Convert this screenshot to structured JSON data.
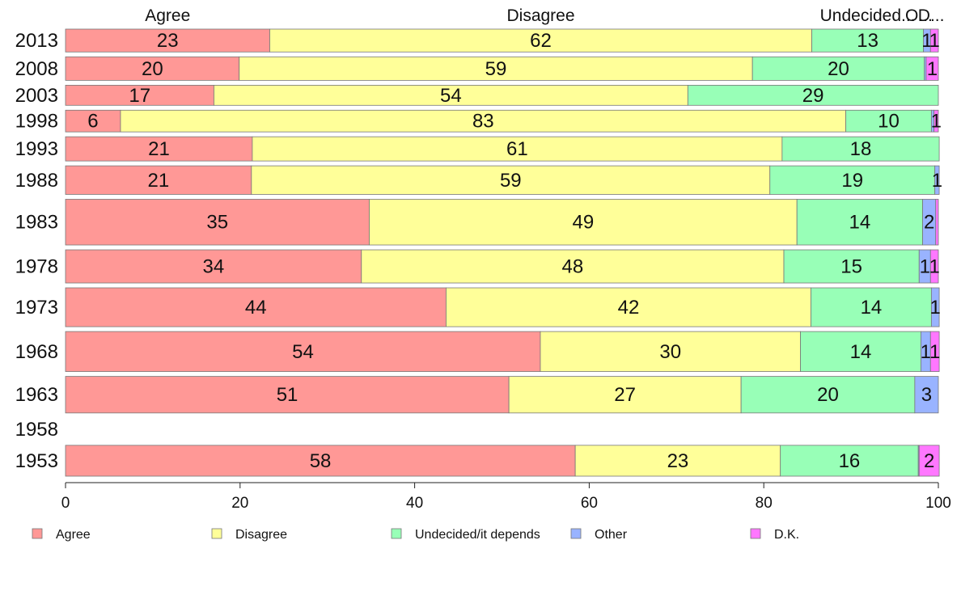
{
  "chart_data": {
    "type": "bar",
    "orientation": "horizontal",
    "stacked": true,
    "title": "",
    "xlabel": "",
    "ylabel": "",
    "xlim": [
      0,
      100
    ],
    "x_ticks": [
      0,
      20,
      40,
      60,
      80,
      100
    ],
    "top_labels": [
      "Agree",
      "Disagree",
      "Undecided...",
      "O...",
      "D..."
    ],
    "categories": [
      "2013",
      "2008",
      "2003",
      "1998",
      "1993",
      "1988",
      "1983",
      "1978",
      "1973",
      "1968",
      "1963",
      "1958",
      "1953"
    ],
    "series": [
      {
        "name": "Agree",
        "color": "#ff9896",
        "values": [
          23.4,
          19.9,
          17.0,
          6.3,
          21.4,
          21.3,
          34.8,
          33.9,
          43.6,
          54.4,
          50.8,
          null,
          58.4
        ]
      },
      {
        "name": "Disagree",
        "color": "#ffff99",
        "values": [
          62.1,
          58.8,
          54.3,
          83.1,
          60.7,
          59.4,
          49.0,
          48.4,
          41.8,
          29.8,
          26.6,
          null,
          23.5
        ]
      },
      {
        "name": "Undecided/it depends",
        "color": "#98ffb7",
        "values": [
          12.8,
          19.7,
          28.7,
          9.8,
          18.0,
          18.9,
          14.4,
          15.5,
          13.8,
          13.8,
          19.9,
          null,
          15.8
        ]
      },
      {
        "name": "Other",
        "color": "#99b3ff",
        "values": [
          0.8,
          0.2,
          0.0,
          0.3,
          0.0,
          0.5,
          1.5,
          1.3,
          0.9,
          1.1,
          2.7,
          null,
          0.1
        ]
      },
      {
        "name": "D.K.",
        "color": "#ff77ff",
        "values": [
          0.9,
          1.4,
          0.0,
          0.5,
          0.0,
          0.0,
          0.3,
          0.9,
          0.0,
          1.0,
          0.0,
          null,
          2.3
        ]
      }
    ],
    "data_labels": [
      [
        "23",
        "62",
        "13",
        "1",
        "1"
      ],
      [
        "20",
        "59",
        "20",
        "",
        "1"
      ],
      [
        "17",
        "54",
        "29",
        "",
        ""
      ],
      [
        "6",
        "83",
        "10",
        "",
        "1"
      ],
      [
        "21",
        "61",
        "18",
        "",
        ""
      ],
      [
        "21",
        "59",
        "19",
        "1",
        ""
      ],
      [
        "35",
        "49",
        "14",
        "2",
        ""
      ],
      [
        "34",
        "48",
        "15",
        "1",
        "1"
      ],
      [
        "44",
        "42",
        "14",
        "1",
        ""
      ],
      [
        "54",
        "30",
        "14",
        "1",
        "1"
      ],
      [
        "51",
        "27",
        "20",
        "3",
        ""
      ],
      [
        "",
        "",
        "",
        "",
        ""
      ],
      [
        "58",
        "23",
        "16",
        "",
        "2"
      ]
    ],
    "row_weights": [
      1,
      1.03,
      0.88,
      0.95,
      1.06,
      1.25,
      2.0,
      1.45,
      1.7,
      1.75,
      1.6,
      0,
      1.35
    ],
    "legend": {
      "position": "bottom",
      "entries": [
        "Agree",
        "Disagree",
        "Undecided/it depends",
        "Other",
        "D.K."
      ]
    },
    "grid": false
  }
}
